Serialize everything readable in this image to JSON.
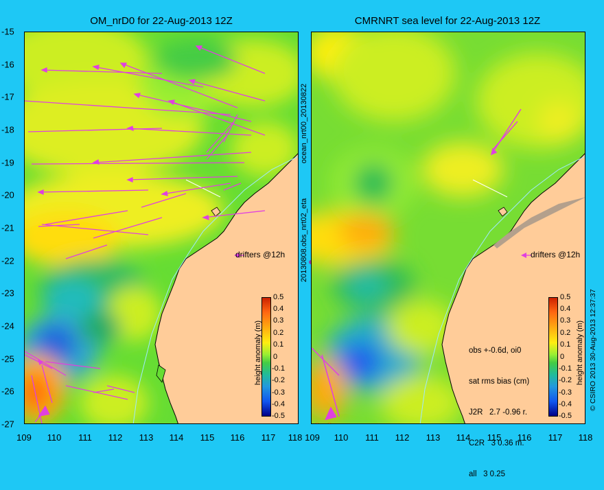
{
  "left_panel": {
    "title": "OM_nrD0 for 22-Aug-2013 12Z",
    "legend": "drifters @12h"
  },
  "right_panel": {
    "title": "CMRNRT sea level  for 22-Aug-2013 12Z",
    "legend": "drifters @12h",
    "stats": [
      "obs +-0.6d, oi0",
      "sat rms bias (cm)",
      "J2R   2.7 -0.96 r.",
      "C2R   3 0.36 m.",
      "all   3 0.25"
    ]
  },
  "axes": {
    "y_ticks": [
      "-15",
      "-16",
      "-17",
      "-18",
      "-19",
      "-20",
      "-21",
      "-22",
      "-23",
      "-24",
      "-25",
      "-26",
      "-27"
    ],
    "x_ticks_left": [
      "109",
      "110",
      "111",
      "112",
      "113",
      "114",
      "115",
      "116",
      "117",
      "118"
    ],
    "x_ticks_right": [
      "109",
      "110",
      "111",
      "112",
      "113",
      "114",
      "115",
      "116",
      "117",
      "118"
    ]
  },
  "colorbar": {
    "label": "height anomaly (m)",
    "ticks": [
      "0.5",
      "0.4",
      "0.3",
      "0.2",
      "0.1",
      "0",
      "-0.1",
      "-0.2",
      "-0.3",
      "-0.4",
      "-0.5"
    ]
  },
  "center_labels": {
    "top": "ocean_nrt00_20130822",
    "bottom": "20130808.obs_nrt02_eta"
  },
  "credit": "© CSIRO 2013   30-Aug-2013 12:37:37",
  "colors": {
    "background": "#1ec8f5",
    "land": "#ffcc99",
    "coast": "#000000",
    "drifter": "#e040e0",
    "shelf_contour": "#a0e8ff"
  }
}
